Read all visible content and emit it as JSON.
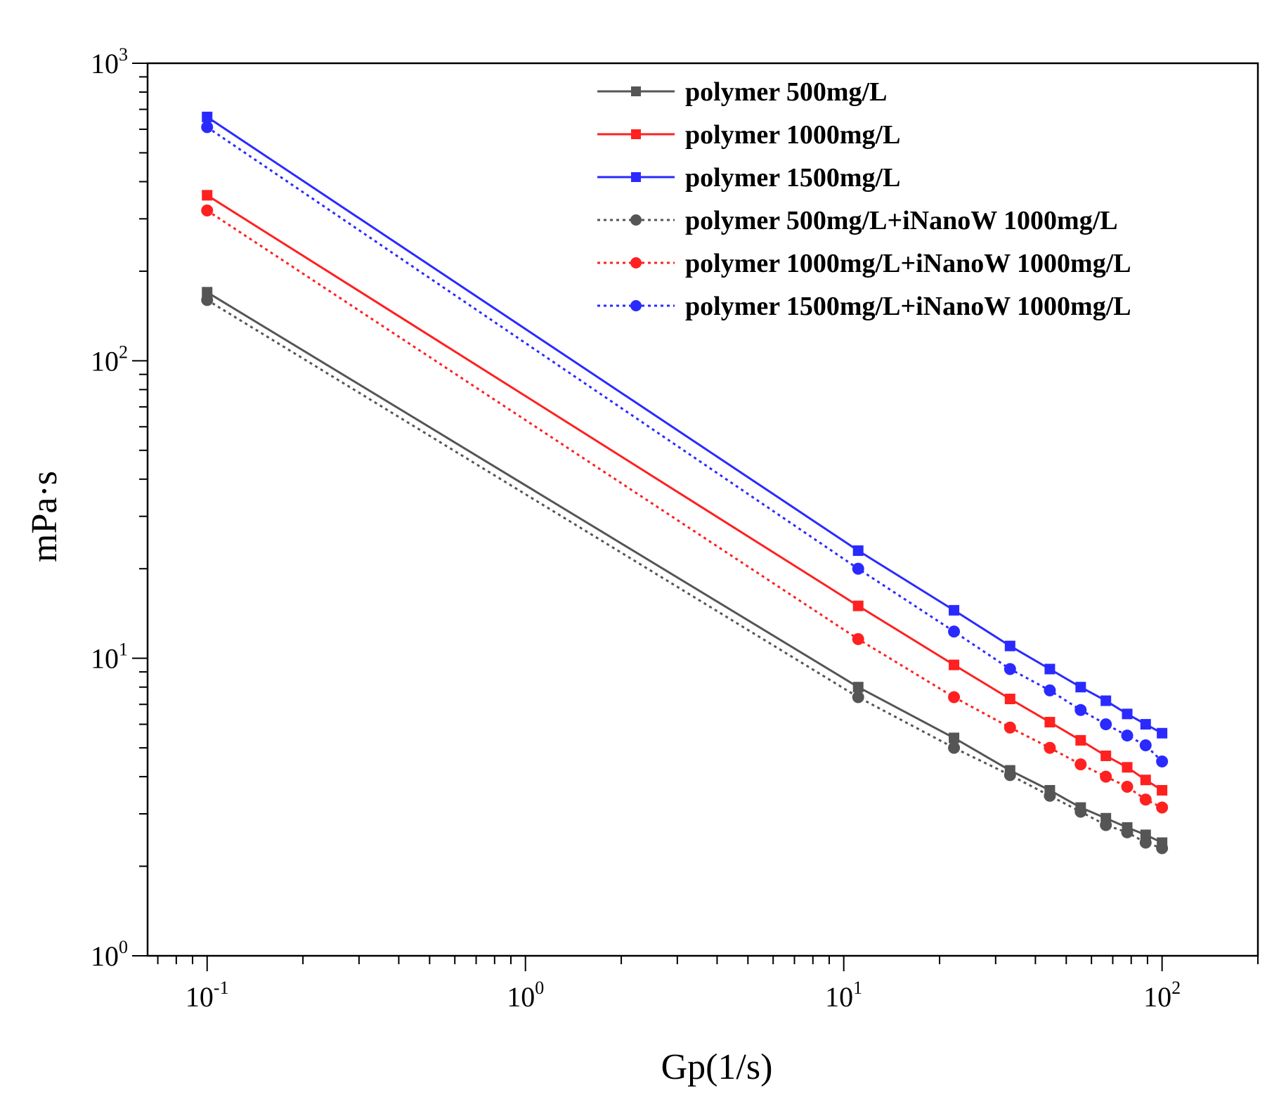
{
  "chart_data": {
    "type": "line",
    "title": "",
    "xlabel": "Gp(1/s)",
    "ylabel": "mPa·s",
    "xscale": "log",
    "yscale": "log",
    "xlim": [
      0.065,
      200
    ],
    "ylim": [
      1,
      1000
    ],
    "grid": false,
    "legend_position": "top-right",
    "x_ticks": [
      {
        "value": 0.1,
        "base": "10",
        "exp": "-1"
      },
      {
        "value": 1,
        "base": "10",
        "exp": "0"
      },
      {
        "value": 10,
        "base": "10",
        "exp": "1"
      },
      {
        "value": 100,
        "base": "10",
        "exp": "2"
      }
    ],
    "y_ticks": [
      {
        "value": 1,
        "base": "10",
        "exp": "0"
      },
      {
        "value": 10,
        "base": "10",
        "exp": "1"
      },
      {
        "value": 100,
        "base": "10",
        "exp": "2"
      },
      {
        "value": 1000,
        "base": "10",
        "exp": "3"
      }
    ],
    "series": [
      {
        "name": "polymer 500mg/L",
        "color": "#555555",
        "line_style": "solid",
        "marker": "square",
        "x": [
          0.1,
          11.1,
          22.2,
          33.3,
          44.4,
          55.5,
          66.6,
          77.7,
          88.8,
          100
        ],
        "y": [
          170,
          8.0,
          5.4,
          4.2,
          3.6,
          3.15,
          2.9,
          2.7,
          2.55,
          2.4
        ]
      },
      {
        "name": "polymer 1000mg/L",
        "color": "#ff2020",
        "line_style": "solid",
        "marker": "square",
        "x": [
          0.1,
          11.1,
          22.2,
          33.3,
          44.4,
          55.5,
          66.6,
          77.7,
          88.8,
          100
        ],
        "y": [
          360,
          15,
          9.5,
          7.3,
          6.1,
          5.3,
          4.7,
          4.3,
          3.9,
          3.6
        ]
      },
      {
        "name": "polymer 1500mg/L",
        "color": "#2a2aff",
        "line_style": "solid",
        "marker": "square",
        "x": [
          0.1,
          11.1,
          22.2,
          33.3,
          44.4,
          55.5,
          66.6,
          77.7,
          88.8,
          100
        ],
        "y": [
          660,
          23,
          14.5,
          11,
          9.2,
          8.0,
          7.2,
          6.5,
          6.0,
          5.6
        ]
      },
      {
        "name": "polymer 500mg/L+iNanoW 1000mg/L",
        "color": "#555555",
        "line_style": "dotted",
        "marker": "circle",
        "x": [
          0.1,
          11.1,
          22.2,
          33.3,
          44.4,
          55.5,
          66.6,
          77.7,
          88.8,
          100
        ],
        "y": [
          160,
          7.4,
          5.0,
          4.05,
          3.45,
          3.05,
          2.75,
          2.6,
          2.4,
          2.3
        ]
      },
      {
        "name": "polymer 1000mg/L+iNanoW 1000mg/L",
        "color": "#ff2020",
        "line_style": "dotted",
        "marker": "circle",
        "x": [
          0.1,
          11.1,
          22.2,
          33.3,
          44.4,
          55.5,
          66.6,
          77.7,
          88.8,
          100
        ],
        "y": [
          320,
          11.6,
          7.4,
          5.85,
          5.0,
          4.4,
          4.0,
          3.7,
          3.35,
          3.15
        ]
      },
      {
        "name": "polymer 1500mg/L+iNanoW 1000mg/L",
        "color": "#2a2aff",
        "line_style": "dotted",
        "marker": "circle",
        "x": [
          0.1,
          11.1,
          22.2,
          33.3,
          44.4,
          55.5,
          66.6,
          77.7,
          88.8,
          100
        ],
        "y": [
          610,
          20,
          12.3,
          9.2,
          7.8,
          6.7,
          6.0,
          5.5,
          5.1,
          4.5
        ]
      }
    ]
  }
}
